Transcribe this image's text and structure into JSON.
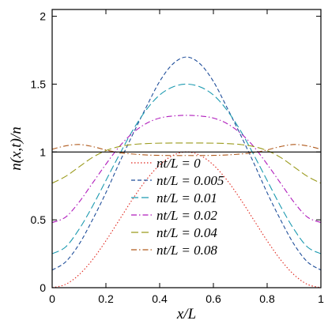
{
  "chart_data": {
    "type": "line",
    "xlabel": "x/L",
    "ylabel": "n(x,t)/n",
    "xlim": [
      0,
      1
    ],
    "ylim": [
      0,
      2.05
    ],
    "xticks": [
      {
        "value": 0,
        "label": "0"
      },
      {
        "value": 0.2,
        "label": "0.2"
      },
      {
        "value": 0.4,
        "label": "0.4"
      },
      {
        "value": 0.6,
        "label": "0.6"
      },
      {
        "value": 0.8,
        "label": "0.8"
      },
      {
        "value": 1,
        "label": "1"
      }
    ],
    "yticks": [
      {
        "value": 0,
        "label": "0"
      },
      {
        "value": 0.5,
        "label": "0.5"
      },
      {
        "value": 1,
        "label": "1"
      },
      {
        "value": 1.5,
        "label": "1.5"
      },
      {
        "value": 2,
        "label": "2"
      }
    ],
    "reference_line": {
      "y": 1,
      "color": "#000000"
    },
    "legend_position": "center-bottom",
    "x": [
      0,
      0.05,
      0.1,
      0.15,
      0.2,
      0.25,
      0.3,
      0.35,
      0.4,
      0.45,
      0.5,
      0.55,
      0.6,
      0.65,
      0.7,
      0.75,
      0.8,
      0.85,
      0.9,
      0.95,
      1
    ],
    "series": [
      {
        "name": "nt/L = 0",
        "color": "#e0261c",
        "dash": "dotted",
        "values": [
          0,
          0.0245,
          0.0955,
          0.2061,
          0.3455,
          0.5,
          0.6545,
          0.7939,
          0.9045,
          0.9755,
          1.0,
          0.9755,
          0.9045,
          0.7939,
          0.6545,
          0.5,
          0.3455,
          0.2061,
          0.0955,
          0.0245,
          0
        ]
      },
      {
        "name": "nt/L = 0.005",
        "color": "#1f4e9a",
        "dash": "dashed",
        "values": [
          0.13,
          0.19,
          0.32,
          0.5,
          0.7,
          0.92,
          1.13,
          1.33,
          1.52,
          1.65,
          1.7,
          1.65,
          1.52,
          1.33,
          1.13,
          0.92,
          0.7,
          0.5,
          0.32,
          0.19,
          0.13
        ]
      },
      {
        "name": "nt/L = 0.01",
        "color": "#1c9ab0",
        "dash": "longdash",
        "values": [
          0.25,
          0.3,
          0.43,
          0.6,
          0.79,
          0.98,
          1.16,
          1.31,
          1.42,
          1.48,
          1.5,
          1.48,
          1.42,
          1.31,
          1.16,
          0.98,
          0.79,
          0.6,
          0.43,
          0.3,
          0.25
        ]
      },
      {
        "name": "nt/L = 0.02",
        "color": "#b01cbc",
        "dash": "dashdot",
        "values": [
          0.48,
          0.52,
          0.63,
          0.77,
          0.91,
          1.04,
          1.14,
          1.21,
          1.25,
          1.265,
          1.27,
          1.265,
          1.25,
          1.21,
          1.14,
          1.04,
          0.91,
          0.77,
          0.63,
          0.52,
          0.48
        ]
      },
      {
        "name": "nt/L = 0.04",
        "color": "#9a9a1c",
        "dash": "longdash",
        "values": [
          0.77,
          0.82,
          0.89,
          0.96,
          1.01,
          1.04,
          1.055,
          1.062,
          1.065,
          1.066,
          1.066,
          1.066,
          1.065,
          1.062,
          1.055,
          1.04,
          1.01,
          0.96,
          0.89,
          0.82,
          0.77
        ]
      },
      {
        "name": "nt/L = 0.08",
        "color": "#b05a1c",
        "dash": "dashdot",
        "values": [
          1.02,
          1.045,
          1.055,
          1.04,
          1.015,
          0.995,
          0.985,
          0.978,
          0.975,
          0.974,
          0.974,
          0.974,
          0.975,
          0.978,
          0.985,
          0.995,
          1.015,
          1.04,
          1.055,
          1.045,
          1.02
        ]
      }
    ]
  }
}
